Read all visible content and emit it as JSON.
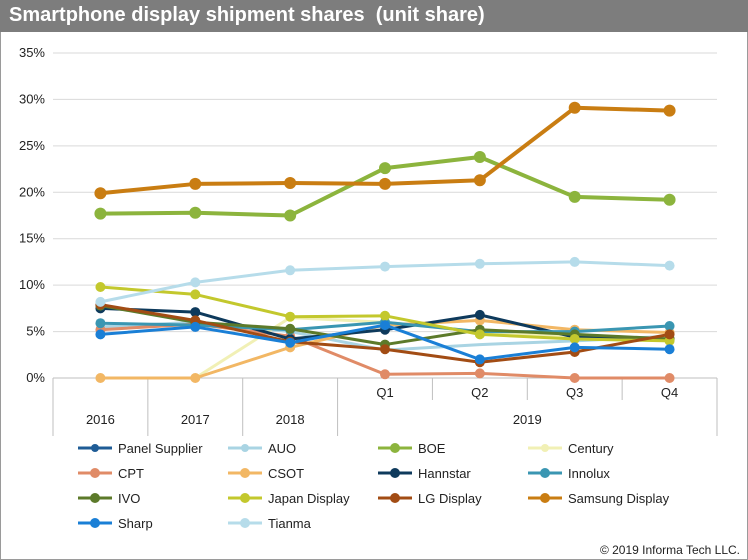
{
  "title": "Smartphone display shipment shares  (unit share)",
  "copyright": "© 2019 Informa Tech LLC.",
  "chart_data": {
    "type": "line",
    "x": [
      "2016",
      "2017",
      "2018",
      "Q1",
      "Q2",
      "Q3",
      "Q4"
    ],
    "x_groups": [
      {
        "label": "2016",
        "items": [
          "2016"
        ]
      },
      {
        "label": "2017",
        "items": [
          "2017"
        ]
      },
      {
        "label": "2018",
        "items": [
          "2018"
        ]
      },
      {
        "label": "2019",
        "items": [
          "Q1",
          "Q2",
          "Q3",
          "Q4"
        ]
      }
    ],
    "y_ticks": [
      "0%",
      "5%",
      "10%",
      "15%",
      "20%",
      "25%",
      "30%",
      "35%"
    ],
    "ylim": [
      0,
      35
    ],
    "grid": true,
    "legend_placement": "bottom",
    "series": [
      {
        "name": "Panel Supplier",
        "color": "#1f5c96",
        "marker": false,
        "values": [
          null,
          null,
          null,
          null,
          null,
          null,
          null
        ]
      },
      {
        "name": "AUO",
        "color": "#a9d4e3",
        "marker": false,
        "values": [
          5.5,
          6.0,
          5.0,
          3.0,
          3.6,
          4.0,
          4.5
        ]
      },
      {
        "name": "BOE",
        "color": "#8cb43d",
        "marker": true,
        "values": [
          17.7,
          17.8,
          17.5,
          22.6,
          23.8,
          19.5,
          19.2
        ]
      },
      {
        "name": "Century",
        "color": "#f1f0b5",
        "marker": false,
        "values": [
          null,
          0.0,
          6.5,
          6.0,
          5.0,
          4.5,
          4.2
        ]
      },
      {
        "name": "CPT",
        "color": "#e08b67",
        "marker": true,
        "values": [
          5.2,
          5.8,
          4.5,
          0.4,
          0.5,
          0.0,
          0.0
        ]
      },
      {
        "name": "CSOT",
        "color": "#f2b764",
        "marker": true,
        "values": [
          0.0,
          0.0,
          3.3,
          5.7,
          6.2,
          5.2,
          4.9
        ]
      },
      {
        "name": "Hannstar",
        "color": "#0e3a5c",
        "marker": true,
        "values": [
          7.5,
          7.1,
          4.2,
          5.2,
          6.8,
          4.4,
          4.2
        ]
      },
      {
        "name": "Innolux",
        "color": "#3a96b2",
        "marker": true,
        "values": [
          5.9,
          5.7,
          5.2,
          6.0,
          5.0,
          5.0,
          5.6
        ]
      },
      {
        "name": "IVO",
        "color": "#5c7a2a",
        "marker": true,
        "values": [
          7.8,
          6.0,
          5.3,
          3.6,
          5.2,
          4.7,
          4.2
        ]
      },
      {
        "name": "Japan Display",
        "color": "#c3c82d",
        "marker": true,
        "values": [
          9.8,
          9.0,
          6.6,
          6.7,
          4.7,
          4.2,
          4.0
        ]
      },
      {
        "name": "LG Display",
        "color": "#a24c14",
        "marker": true,
        "values": [
          7.9,
          6.2,
          3.9,
          3.1,
          1.7,
          2.8,
          4.7
        ]
      },
      {
        "name": "Samsung Display",
        "color": "#c97d12",
        "marker": true,
        "values": [
          19.9,
          20.9,
          21.0,
          20.9,
          21.3,
          29.1,
          28.8
        ]
      },
      {
        "name": "Sharp",
        "color": "#1a7fd6",
        "marker": true,
        "values": [
          4.7,
          5.5,
          3.8,
          5.7,
          2.0,
          3.3,
          3.1
        ]
      },
      {
        "name": "Tianma",
        "color": "#b6dcea",
        "marker": true,
        "values": [
          8.2,
          10.3,
          11.6,
          12.0,
          12.3,
          12.5,
          12.1
        ]
      }
    ]
  }
}
